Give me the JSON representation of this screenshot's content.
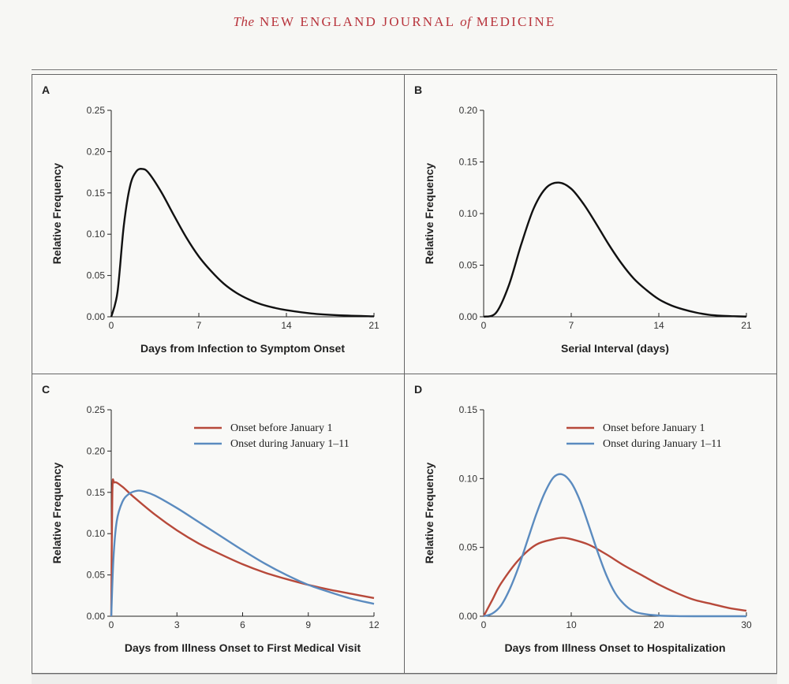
{
  "header": {
    "journal_the": "The",
    "journal_main1": "NEW ENGLAND JOURNAL",
    "journal_of": "of",
    "journal_main2": "MEDICINE"
  },
  "colors": {
    "red": "#b7493a",
    "blue": "#5b8bbf",
    "black": "#111111"
  },
  "chart_data": [
    {
      "panel": "A",
      "type": "line",
      "xlabel": "Days from Infection to Symptom Onset",
      "ylabel": "Relative Frequency",
      "xlim": [
        0,
        21
      ],
      "ylim": [
        0,
        0.25
      ],
      "xticks": [
        "0",
        "7",
        "14",
        "21"
      ],
      "yticks": [
        "0.00",
        "0.05",
        "0.10",
        "0.15",
        "0.20",
        "0.25"
      ],
      "series": [
        {
          "color": "#111111",
          "x": [
            0,
            0.5,
            1,
            1.5,
            2,
            2.5,
            3,
            4,
            5,
            6,
            7,
            8,
            9,
            10,
            11,
            12,
            13,
            14,
            16,
            18,
            21
          ],
          "y": [
            0,
            0.03,
            0.11,
            0.158,
            0.176,
            0.179,
            0.174,
            0.151,
            0.123,
            0.096,
            0.073,
            0.055,
            0.04,
            0.029,
            0.021,
            0.015,
            0.011,
            0.008,
            0.004,
            0.002,
            0.0005
          ]
        }
      ]
    },
    {
      "panel": "B",
      "type": "line",
      "xlabel": "Serial Interval (days)",
      "ylabel": "Relative Frequency",
      "xlim": [
        0,
        21
      ],
      "ylim": [
        0,
        0.2
      ],
      "xticks": [
        "0",
        "7",
        "14",
        "21"
      ],
      "yticks": [
        "0.00",
        "0.05",
        "0.10",
        "0.15",
        "0.20"
      ],
      "series": [
        {
          "color": "#111111",
          "x": [
            0,
            1,
            2,
            3,
            4,
            5,
            6,
            7,
            8,
            9,
            10,
            11,
            12,
            13,
            14,
            15,
            16,
            17,
            18,
            19,
            20,
            21
          ],
          "y": [
            0,
            0.004,
            0.03,
            0.07,
            0.105,
            0.125,
            0.13,
            0.124,
            0.109,
            0.09,
            0.07,
            0.052,
            0.037,
            0.026,
            0.017,
            0.011,
            0.007,
            0.004,
            0.002,
            0.001,
            0.0005,
            0.0002
          ]
        }
      ]
    },
    {
      "panel": "C",
      "type": "line",
      "xlabel": "Days from Illness Onset to First Medical Visit",
      "ylabel": "Relative Frequency",
      "xlim": [
        0,
        12
      ],
      "ylim": [
        0,
        0.25
      ],
      "xticks": [
        "0",
        "3",
        "6",
        "9",
        "12"
      ],
      "yticks": [
        "0.00",
        "0.05",
        "0.10",
        "0.15",
        "0.20",
        "0.25"
      ],
      "legend_position": "top-right",
      "series": [
        {
          "name": "Onset before January 1",
          "color": "#b7493a",
          "x": [
            0,
            0.05,
            0.15,
            0.5,
            1,
            2,
            3,
            4,
            5,
            6,
            7,
            8,
            9,
            10,
            11,
            12
          ],
          "y": [
            0,
            0.15,
            0.162,
            0.157,
            0.145,
            0.123,
            0.104,
            0.088,
            0.075,
            0.063,
            0.053,
            0.045,
            0.038,
            0.032,
            0.027,
            0.022
          ]
        },
        {
          "name": "Onset during January 1–11",
          "color": "#5b8bbf",
          "x": [
            0,
            0.1,
            0.25,
            0.5,
            0.8,
            1.2,
            1.5,
            2,
            3,
            4,
            5,
            6,
            7,
            8,
            9,
            10,
            11,
            12
          ],
          "y": [
            0,
            0.07,
            0.115,
            0.138,
            0.148,
            0.152,
            0.151,
            0.146,
            0.131,
            0.114,
            0.097,
            0.08,
            0.064,
            0.05,
            0.038,
            0.029,
            0.021,
            0.015
          ]
        }
      ]
    },
    {
      "panel": "D",
      "type": "line",
      "xlabel": "Days from Illness Onset to Hospitalization",
      "ylabel": "Relative Frequency",
      "xlim": [
        0,
        30
      ],
      "ylim": [
        0,
        0.15
      ],
      "xticks": [
        "0",
        "10",
        "20",
        "30"
      ],
      "yticks": [
        "0.00",
        "0.05",
        "0.10",
        "0.15"
      ],
      "legend_position": "top-right",
      "series": [
        {
          "name": "Onset before January 1",
          "color": "#b7493a",
          "x": [
            0,
            1,
            2,
            4,
            6,
            8,
            9,
            10,
            12,
            14,
            16,
            18,
            20,
            22,
            24,
            26,
            28,
            30
          ],
          "y": [
            0,
            0.012,
            0.024,
            0.041,
            0.052,
            0.056,
            0.057,
            0.056,
            0.052,
            0.045,
            0.037,
            0.03,
            0.023,
            0.017,
            0.012,
            0.009,
            0.006,
            0.004
          ]
        },
        {
          "name": "Onset during January 1–11",
          "color": "#5b8bbf",
          "x": [
            0,
            1,
            2,
            3,
            4,
            5,
            6,
            7,
            8,
            9,
            10,
            11,
            12,
            13,
            14,
            15,
            16,
            17,
            18,
            20,
            22,
            24,
            30
          ],
          "y": [
            0,
            0.002,
            0.008,
            0.02,
            0.036,
            0.055,
            0.074,
            0.09,
            0.101,
            0.103,
            0.097,
            0.084,
            0.066,
            0.047,
            0.03,
            0.017,
            0.009,
            0.004,
            0.002,
            0.0005,
            0.0001,
            0,
            0
          ]
        }
      ]
    }
  ]
}
